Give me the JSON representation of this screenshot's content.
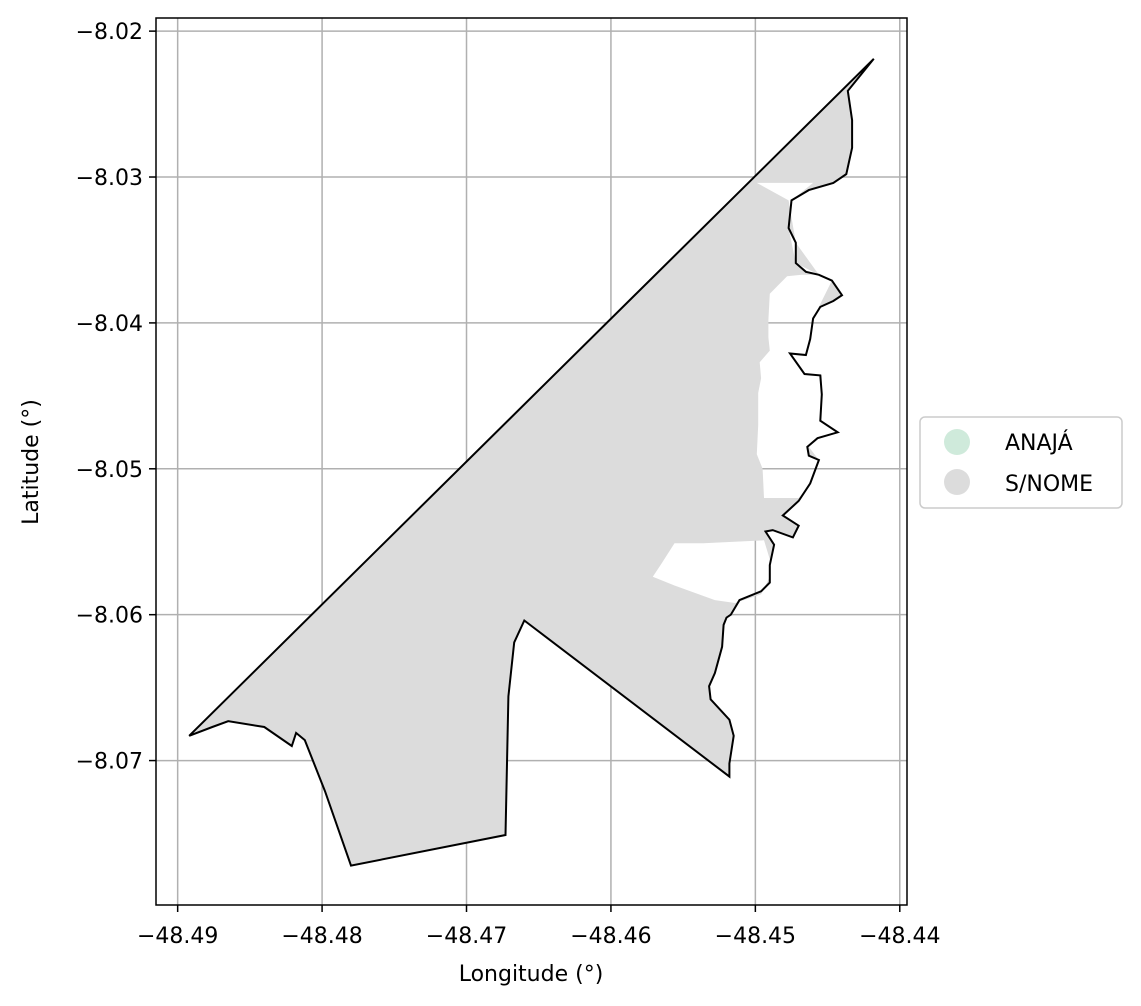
{
  "chart_data": {
    "type": "map",
    "xlabel": "Longitude (°)",
    "ylabel": "Latitude (°)",
    "xlim": [
      -48.4915,
      -48.4395
    ],
    "ylim": [
      -8.0799,
      -8.0191
    ],
    "x_ticks": [
      -48.49,
      -48.48,
      -48.47,
      -48.46,
      -48.45,
      -48.44
    ],
    "x_tick_labels": [
      "−48.49",
      "−48.48",
      "−48.47",
      "−48.46",
      "−48.45",
      "−48.44"
    ],
    "y_ticks": [
      -8.02,
      -8.03,
      -8.04,
      -8.05,
      -8.06,
      -8.07
    ],
    "y_tick_labels": [
      "−8.02",
      "−8.03",
      "−8.04",
      "−8.05",
      "−8.06",
      "−8.07"
    ],
    "grid": true,
    "legend": {
      "placement": "right",
      "entries": [
        {
          "label": "ANAJÁ",
          "color": "#cfeadb"
        },
        {
          "label": "S/NOME",
          "color": "#dcdcdc"
        }
      ]
    },
    "fill_color": "#dcdcdc",
    "outline_color": "#000000",
    "boundary": [
      [
        -48.4418,
        -8.0219
      ],
      [
        -48.4436,
        -8.0241
      ],
      [
        -48.4433,
        -8.0261
      ],
      [
        -48.4433,
        -8.028
      ],
      [
        -48.4437,
        -8.0298
      ],
      [
        -48.4446,
        -8.0304
      ],
      [
        -48.4463,
        -8.0309
      ],
      [
        -48.4475,
        -8.0316
      ],
      [
        -48.4477,
        -8.0335
      ],
      [
        -48.4472,
        -8.0345
      ],
      [
        -48.4472,
        -8.0359
      ],
      [
        -48.4465,
        -8.0365
      ],
      [
        -48.4456,
        -8.0367
      ],
      [
        -48.4447,
        -8.0371
      ],
      [
        -48.444,
        -8.0381
      ],
      [
        -48.4446,
        -8.0385
      ],
      [
        -48.4455,
        -8.0389
      ],
      [
        -48.446,
        -8.0397
      ],
      [
        -48.4462,
        -8.0411
      ],
      [
        -48.4465,
        -8.0422
      ],
      [
        -48.4476,
        -8.0421
      ],
      [
        -48.4466,
        -8.0435
      ],
      [
        -48.4455,
        -8.0436
      ],
      [
        -48.4454,
        -8.0449
      ],
      [
        -48.4455,
        -8.0467
      ],
      [
        -48.4443,
        -8.0475
      ],
      [
        -48.4457,
        -8.0479
      ],
      [
        -48.4464,
        -8.0485
      ],
      [
        -48.4463,
        -8.0491
      ],
      [
        -48.4456,
        -8.0494
      ],
      [
        -48.4462,
        -8.051
      ],
      [
        -48.447,
        -8.0522
      ],
      [
        -48.4481,
        -8.0532
      ],
      [
        -48.447,
        -8.0539
      ],
      [
        -48.4474,
        -8.0547
      ],
      [
        -48.4488,
        -8.0542
      ],
      [
        -48.4493,
        -8.0543
      ],
      [
        -48.4487,
        -8.0552
      ],
      [
        -48.449,
        -8.0566
      ],
      [
        -48.449,
        -8.0578
      ],
      [
        -48.4496,
        -8.0584
      ],
      [
        -48.4511,
        -8.059
      ],
      [
        -48.4517,
        -8.06
      ],
      [
        -48.452,
        -8.0602
      ],
      [
        -48.4522,
        -8.0607
      ],
      [
        -48.4523,
        -8.0622
      ],
      [
        -48.4528,
        -8.064
      ],
      [
        -48.4532,
        -8.0649
      ],
      [
        -48.4531,
        -8.0658
      ],
      [
        -48.4518,
        -8.0672
      ],
      [
        -48.4515,
        -8.0683
      ],
      [
        -48.4518,
        -8.0702
      ],
      [
        -48.4518,
        -8.0711
      ],
      [
        -48.466,
        -8.0604
      ],
      [
        -48.4667,
        -8.0619
      ],
      [
        -48.4671,
        -8.0656
      ],
      [
        -48.4673,
        -8.0751
      ],
      [
        -48.478,
        -8.0772
      ],
      [
        -48.4798,
        -8.0721
      ],
      [
        -48.4812,
        -8.0686
      ],
      [
        -48.4818,
        -8.0681
      ],
      [
        -48.4821,
        -8.069
      ],
      [
        -48.484,
        -8.0677
      ],
      [
        -48.4865,
        -8.0673
      ],
      [
        -48.4876,
        -8.0677
      ],
      [
        -48.4892,
        -8.0683
      ],
      [
        -48.4418,
        -8.0219
      ]
    ],
    "holes": [
      [
        [
          -48.4494,
          -8.0549
        ],
        [
          -48.4536,
          -8.0551
        ],
        [
          -48.4556,
          -8.0551
        ],
        [
          -48.4565,
          -8.0565
        ],
        [
          -48.4571,
          -8.0574
        ],
        [
          -48.4556,
          -8.058
        ],
        [
          -48.4528,
          -8.059
        ],
        [
          -48.4514,
          -8.0592
        ],
        [
          -48.4496,
          -8.0586
        ],
        [
          -48.449,
          -8.0574
        ],
        [
          -48.449,
          -8.0562
        ]
      ],
      [
        [
          -48.4499,
          -8.0304
        ],
        [
          -48.446,
          -8.0304
        ],
        [
          -48.4475,
          -8.0316
        ],
        [
          -48.4477,
          -8.0335
        ],
        [
          -48.4472,
          -8.0359
        ],
        [
          -48.4456,
          -8.0367
        ],
        [
          -48.4468,
          -8.0367
        ],
        [
          -48.4478,
          -8.0368
        ],
        [
          -48.449,
          -8.038
        ],
        [
          -48.4491,
          -8.0398
        ],
        [
          -48.4491,
          -8.041
        ],
        [
          -48.449,
          -8.0419
        ],
        [
          -48.4497,
          -8.0427
        ],
        [
          -48.4496,
          -8.0438
        ],
        [
          -48.4498,
          -8.0448
        ],
        [
          -48.4498,
          -8.047
        ],
        [
          -48.4499,
          -8.049
        ],
        [
          -48.4495,
          -8.05
        ],
        [
          -48.4494,
          -8.052
        ],
        [
          -48.447,
          -8.052
        ],
        [
          -48.4462,
          -8.051
        ],
        [
          -48.4456,
          -8.0494
        ],
        [
          -48.4463,
          -8.0485
        ],
        [
          -48.4457,
          -8.0479
        ],
        [
          -48.4443,
          -8.0475
        ],
        [
          -48.4455,
          -8.0467
        ],
        [
          -48.4454,
          -8.0436
        ],
        [
          -48.4466,
          -8.0435
        ],
        [
          -48.4476,
          -8.0421
        ],
        [
          -48.4465,
          -8.0422
        ],
        [
          -48.446,
          -8.0397
        ],
        [
          -48.4447,
          -8.0371
        ],
        [
          -48.4456,
          -8.0367
        ],
        [
          -48.4472,
          -8.0345
        ],
        [
          -48.4477,
          -8.0316
        ]
      ]
    ]
  }
}
